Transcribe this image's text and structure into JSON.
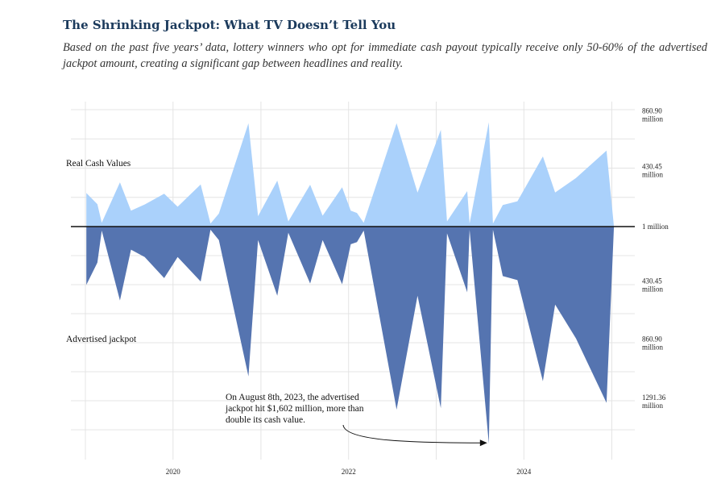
{
  "header": {
    "title": "The Shrinking Jackpot: What TV Doesn’t Tell You",
    "subtitle": "Based on the past five years’ data, lottery winners who opt for immediate cash payout typically receive only 50-60% of the advertised jackpot amount, creating a significant gap between headlines and reality."
  },
  "colors": {
    "cash": "#aad1fb",
    "advertised": "#5574b0",
    "baseline": "#111111",
    "arrow": "#111111"
  },
  "chart_data": {
    "type": "area",
    "title": "The Shrinking Jackpot: What TV Doesn’t Tell You",
    "x_ticks": [
      {
        "date": "2020-01-01",
        "label": "2020"
      },
      {
        "date": "2022-01-01",
        "label": "2022"
      },
      {
        "date": "2024-01-01",
        "label": "2024"
      }
    ],
    "x_range": [
      "2019-01-01",
      "2025-03-01"
    ],
    "y_ticks_top": [
      {
        "value": 860.9,
        "line1": "860.90",
        "line2": "million"
      },
      {
        "value": 430.45,
        "line1": "430.45",
        "line2": "million"
      }
    ],
    "y_tick_center": {
      "value": 1,
      "line1": "1 million"
    },
    "y_ticks_bottom": [
      {
        "value": 430.45,
        "line1": "430.45",
        "line2": "million"
      },
      {
        "value": 860.9,
        "line1": "860.90",
        "line2": "million"
      },
      {
        "value": 1291.36,
        "line1": "1291.36",
        "line2": "million"
      }
    ],
    "y_range_top": [
      0,
      900
    ],
    "y_range_bottom": [
      0,
      1600
    ],
    "grid": true,
    "series": [
      {
        "name": "Real Cash Values",
        "points": [
          [
            "2019-01-05",
            258
          ],
          [
            "2019-02-20",
            172
          ],
          [
            "2019-03-10",
            30
          ],
          [
            "2019-05-25",
            341
          ],
          [
            "2019-07-10",
            122
          ],
          [
            "2019-09-05",
            170
          ],
          [
            "2019-11-25",
            253
          ],
          [
            "2020-01-20",
            153
          ],
          [
            "2020-04-25",
            324
          ],
          [
            "2020-06-05",
            23
          ],
          [
            "2020-07-10",
            100
          ],
          [
            "2020-11-10",
            795
          ],
          [
            "2020-12-20",
            80
          ],
          [
            "2021-03-10",
            354
          ],
          [
            "2021-04-25",
            40
          ],
          [
            "2021-07-25",
            322
          ],
          [
            "2021-09-15",
            84
          ],
          [
            "2021-12-05",
            303
          ],
          [
            "2022-01-10",
            122
          ],
          [
            "2022-02-05",
            105
          ],
          [
            "2022-03-05",
            30
          ],
          [
            "2022-07-20",
            795
          ],
          [
            "2022-10-15",
            261
          ],
          [
            "2023-01-20",
            745
          ],
          [
            "2023-02-15",
            40
          ],
          [
            "2023-05-10",
            273
          ],
          [
            "2023-05-20",
            23
          ],
          [
            "2023-08-08",
            803
          ],
          [
            "2023-08-25",
            23
          ],
          [
            "2023-10-05",
            166
          ],
          [
            "2023-12-05",
            195
          ],
          [
            "2024-03-20",
            540
          ],
          [
            "2024-05-10",
            262
          ],
          [
            "2024-08-05",
            374
          ],
          [
            "2024-12-10",
            585
          ],
          [
            "2025-01-10",
            0
          ]
        ]
      },
      {
        "name": "Advertised jackpot",
        "points": [
          [
            "2019-01-05",
            430
          ],
          [
            "2019-02-20",
            265
          ],
          [
            "2019-03-10",
            30
          ],
          [
            "2019-05-25",
            545
          ],
          [
            "2019-07-10",
            170
          ],
          [
            "2019-09-05",
            225
          ],
          [
            "2019-11-25",
            380
          ],
          [
            "2020-01-20",
            225
          ],
          [
            "2020-04-25",
            405
          ],
          [
            "2020-06-05",
            23
          ],
          [
            "2020-07-10",
            100
          ],
          [
            "2020-11-10",
            1105
          ],
          [
            "2020-12-20",
            100
          ],
          [
            "2021-03-10",
            510
          ],
          [
            "2021-04-25",
            45
          ],
          [
            "2021-07-25",
            420
          ],
          [
            "2021-09-15",
            100
          ],
          [
            "2021-12-05",
            425
          ],
          [
            "2022-01-10",
            130
          ],
          [
            "2022-02-05",
            115
          ],
          [
            "2022-03-05",
            30
          ],
          [
            "2022-07-20",
            1350
          ],
          [
            "2022-10-15",
            510
          ],
          [
            "2023-01-20",
            1340
          ],
          [
            "2023-02-15",
            50
          ],
          [
            "2023-05-10",
            485
          ],
          [
            "2023-05-20",
            23
          ],
          [
            "2023-08-08",
            1602
          ],
          [
            "2023-08-25",
            23
          ],
          [
            "2023-10-05",
            365
          ],
          [
            "2023-12-05",
            395
          ],
          [
            "2024-03-20",
            1140
          ],
          [
            "2024-05-10",
            575
          ],
          [
            "2024-08-05",
            825
          ],
          [
            "2024-12-10",
            1300
          ],
          [
            "2025-01-10",
            0
          ]
        ]
      }
    ],
    "annotation": {
      "lines": [
        "On August 8th, 2023, the advertised",
        "jackpot hit $1,602 million, more than",
        "double its cash value."
      ],
      "target": {
        "date": "2023-08-08",
        "series": "Advertised jackpot",
        "value": 1602
      }
    }
  }
}
